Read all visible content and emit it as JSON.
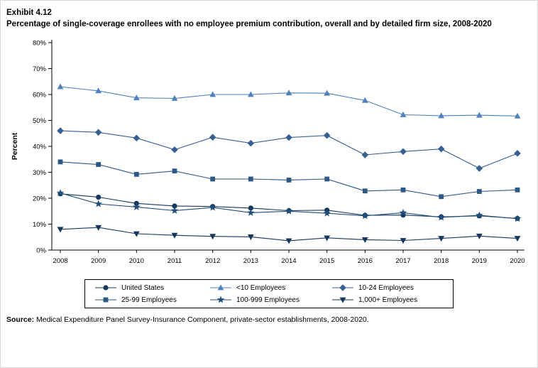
{
  "header": {
    "exhibit": "Exhibit 4.12",
    "title": "Percentage of single-coverage enrollees with no employee premium contribution, overall and by detailed firm size, 2008-2020"
  },
  "chart_data": {
    "type": "line",
    "title": "Percentage of single-coverage enrollees with no employee premium contribution, overall and by detailed firm size, 2008-2020",
    "x": [
      2008,
      2009,
      2010,
      2011,
      2012,
      2013,
      2014,
      2015,
      2016,
      2017,
      2018,
      2019,
      2020
    ],
    "xlabel": "",
    "ylabel": "Percent",
    "ylim": [
      0,
      80
    ],
    "ytick_step": 10,
    "ytick_suffix": "%",
    "grid": false,
    "legend_position": "bottom",
    "series": [
      {
        "name": "United States",
        "marker": "circle",
        "color": "#17375d",
        "values": [
          21.7,
          20.4,
          18.0,
          17.0,
          16.8,
          16.2,
          15.2,
          15.4,
          13.4,
          13.5,
          12.8,
          13.2,
          12.2
        ]
      },
      {
        "name": "<10 Employees",
        "marker": "triangle-up",
        "color": "#4f81bd",
        "values": [
          63.0,
          61.4,
          58.7,
          58.5,
          60.0,
          60.0,
          60.6,
          60.5,
          57.7,
          52.2,
          51.8,
          52.0,
          51.7
        ]
      },
      {
        "name": "10-24 Employees",
        "marker": "diamond",
        "color": "#376092",
        "values": [
          46.0,
          45.4,
          43.2,
          38.7,
          43.5,
          41.2,
          43.4,
          44.2,
          36.7,
          38.0,
          39.0,
          31.5,
          37.3
        ]
      },
      {
        "name": "25-99 Employees",
        "marker": "square",
        "color": "#2c5985",
        "values": [
          34.0,
          33.0,
          29.2,
          30.5,
          27.4,
          27.4,
          27.0,
          27.4,
          22.8,
          23.2,
          20.6,
          22.6,
          23.2
        ]
      },
      {
        "name": "100-999 Employees",
        "marker": "star",
        "color": "#1f4e79",
        "values": [
          22.0,
          17.8,
          16.6,
          15.2,
          16.4,
          14.4,
          15.0,
          14.2,
          13.2,
          14.4,
          12.6,
          13.4,
          12.1
        ]
      },
      {
        "name": "1,000+ Employees",
        "marker": "triangle-down",
        "color": "#17375d",
        "values": [
          8.0,
          8.7,
          6.3,
          5.7,
          5.3,
          5.1,
          3.6,
          4.7,
          4.0,
          3.7,
          4.5,
          5.4,
          4.5
        ]
      }
    ]
  },
  "source": {
    "label": "Source:",
    "text": " Medical Expenditure Panel Survey-Insurance Component, private-sector establishments, 2008-2020."
  }
}
